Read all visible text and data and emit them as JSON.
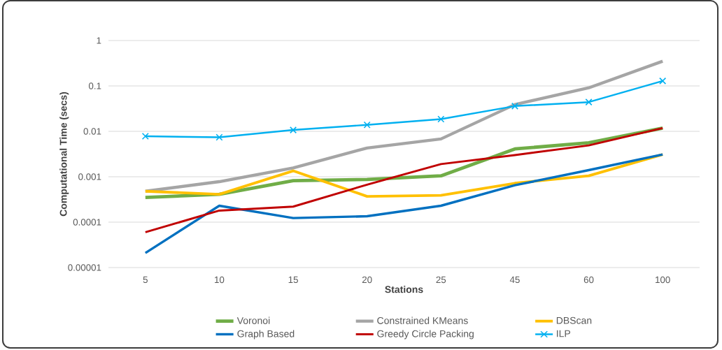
{
  "chart_data": {
    "type": "line",
    "xlabel": "Stations",
    "ylabel": "Computational Time (secs)",
    "categories": [
      "5",
      "10",
      "15",
      "20",
      "25",
      "45",
      "60",
      "100"
    ],
    "series": [
      {
        "name": "Voronoi",
        "color": "#70ad47",
        "values": [
          0.00035,
          0.00041,
          0.00082,
          0.00087,
          0.00105,
          0.0041,
          0.0056,
          0.0118
        ]
      },
      {
        "name": "Constrained KMeans",
        "color": "#a5a5a5",
        "values": [
          0.00048,
          0.00078,
          0.00156,
          0.0043,
          0.0068,
          0.039,
          0.091,
          0.35
        ]
      },
      {
        "name": "DBScan",
        "color": "#ffc000",
        "values": [
          0.00048,
          0.00041,
          0.00135,
          0.00037,
          0.00039,
          0.00072,
          0.00105,
          0.0031
        ]
      },
      {
        "name": "Graph Based",
        "color": "#0070c0",
        "values": [
          2.1e-05,
          0.00023,
          0.000123,
          0.000135,
          0.00023,
          0.00065,
          0.0014,
          0.0031
        ]
      },
      {
        "name": "Greedy Circle Packing",
        "color": "#c00000",
        "values": [
          6e-05,
          0.00018,
          0.00022,
          0.00067,
          0.0019,
          0.003,
          0.0049,
          0.0118
        ]
      },
      {
        "name": "ILP",
        "color": "#00b0f0",
        "marker": "cross",
        "values": [
          0.0078,
          0.0074,
          0.0107,
          0.0139,
          0.0186,
          0.036,
          0.044,
          0.129
        ]
      }
    ],
    "log": "y",
    "ylim": [
      1e-05,
      1
    ],
    "yticks": [
      {
        "value": 1e-05,
        "label": "0.00001"
      },
      {
        "value": 0.0001,
        "label": "0.0001"
      },
      {
        "value": 0.001,
        "label": "0.001"
      },
      {
        "value": 0.01,
        "label": "0.01"
      },
      {
        "value": 0.1,
        "label": "0.1"
      },
      {
        "value": 1,
        "label": "1"
      }
    ],
    "grid": "y",
    "legend": "bottom",
    "marker": "none",
    "line_style": "solid"
  }
}
